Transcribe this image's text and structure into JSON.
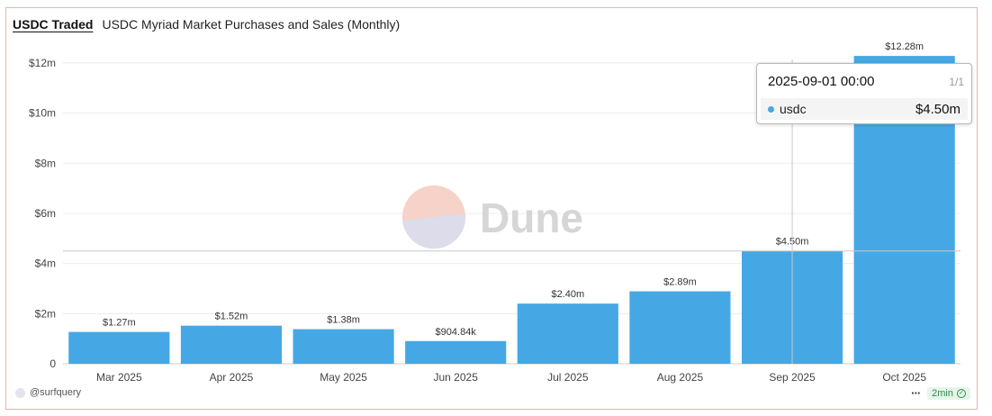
{
  "header": {
    "active_tab": "USDC Traded",
    "title": "USDC Myriad Market Purchases and Sales (Monthly)"
  },
  "chart_data": {
    "type": "bar",
    "title": "USDC Myriad Market Purchases and Sales (Monthly)",
    "categories": [
      "Mar 2025",
      "Apr 2025",
      "May 2025",
      "Jun 2025",
      "Jul 2025",
      "Aug 2025",
      "Sep 2025",
      "Oct 2025"
    ],
    "series": [
      {
        "name": "usdc",
        "values": [
          1270000,
          1520000,
          1380000,
          904840,
          2400000,
          2890000,
          4500000,
          12280000
        ],
        "labels": [
          "$1.27m",
          "$1.52m",
          "$1.38m",
          "$904.84k",
          "$2.40m",
          "$2.89m",
          "$4.50m",
          "$12.28m"
        ],
        "color": "#45a8e4"
      }
    ],
    "y_ticks": [
      0,
      2000000,
      4000000,
      6000000,
      8000000,
      10000000,
      12000000
    ],
    "y_tick_labels": [
      "0",
      "$2m",
      "$4m",
      "$6m",
      "$8m",
      "$10m",
      "$12m"
    ],
    "ylim": [
      0,
      12500000
    ],
    "grid": true,
    "legend": "none"
  },
  "watermark": {
    "text": "Dune"
  },
  "tooltip": {
    "title": "2025-09-01 00:00",
    "page": "1/1",
    "series": "usdc",
    "value": "$4.50m",
    "color": "#45a8e4"
  },
  "footer": {
    "author": "@surfquery",
    "more": "···",
    "age": "2min"
  }
}
